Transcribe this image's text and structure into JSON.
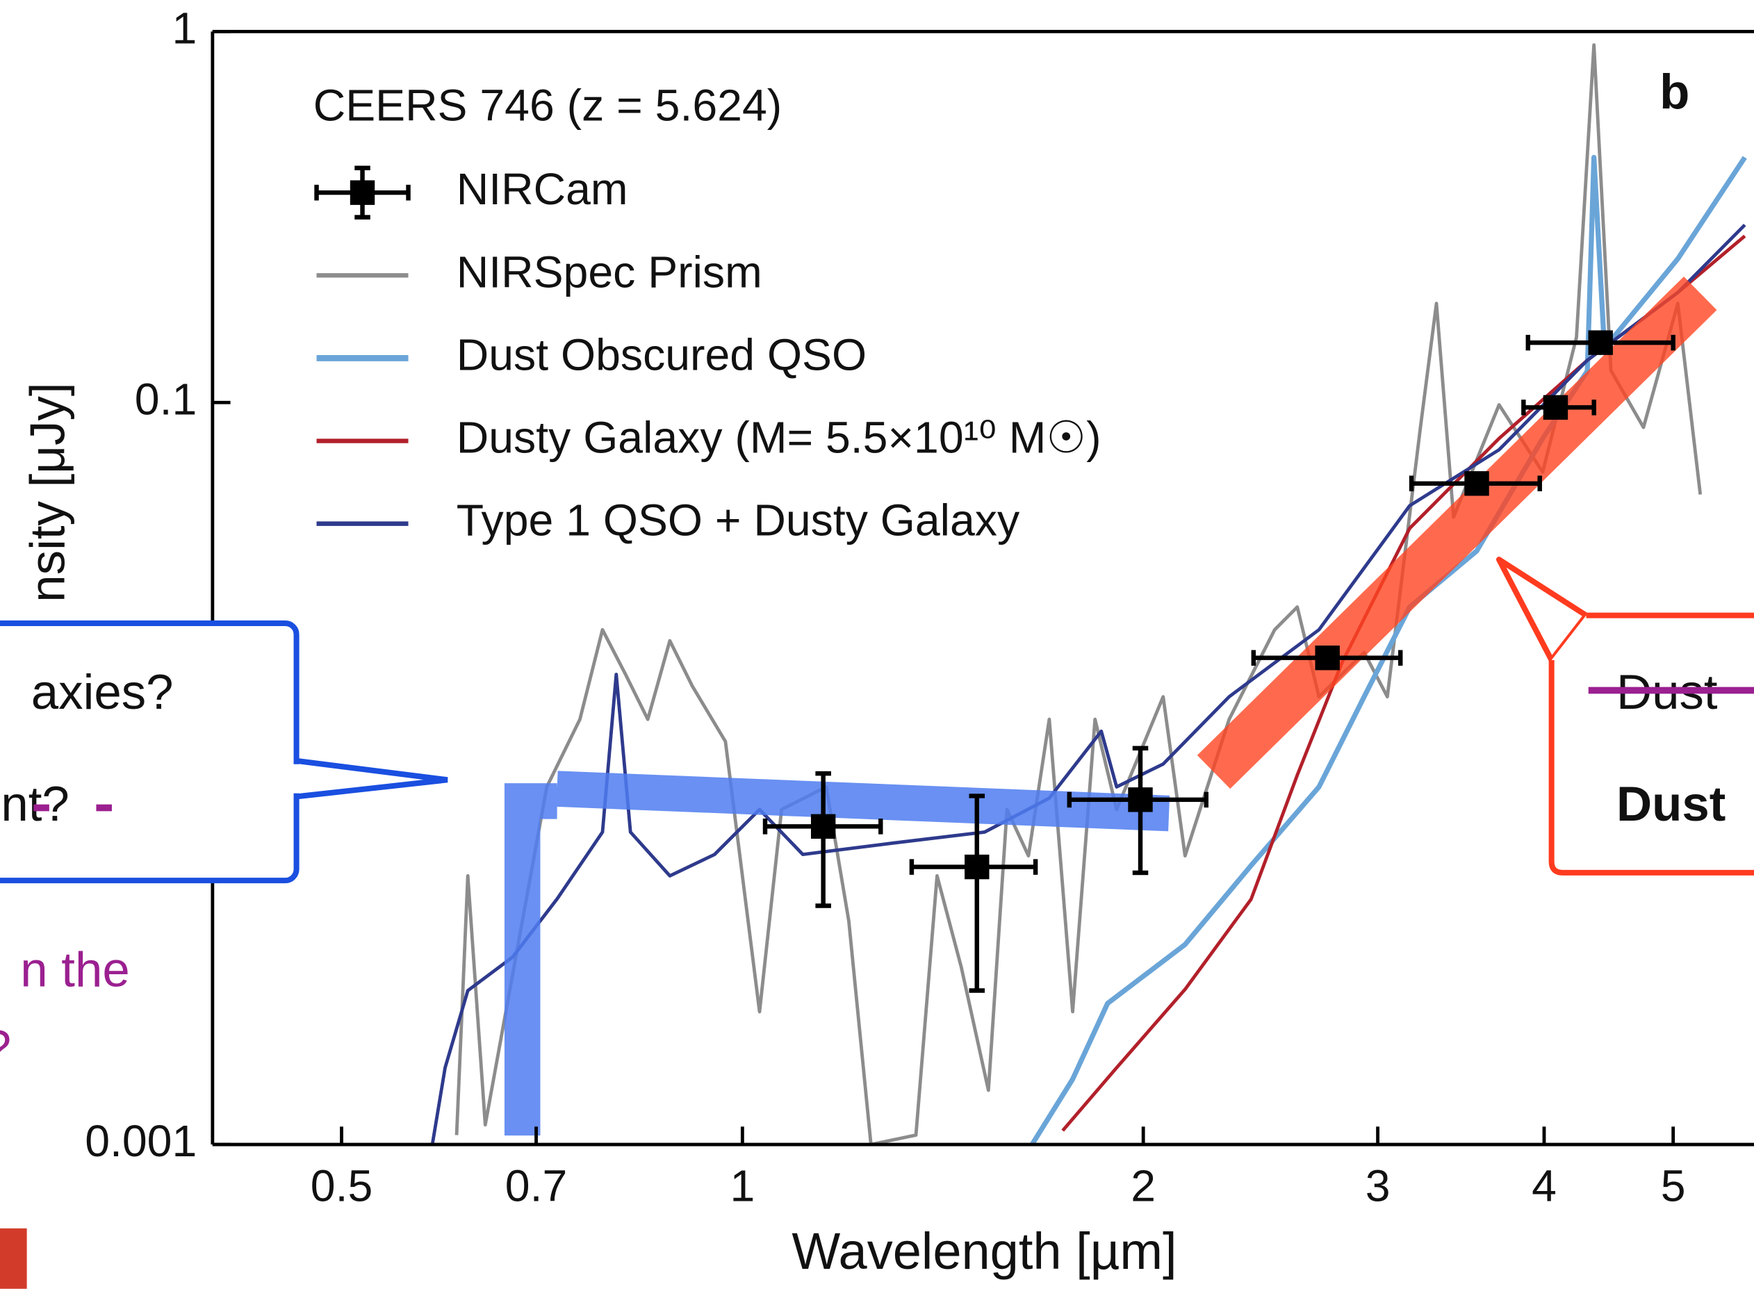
{
  "chart_data": {
    "type": "line",
    "xlabel": "Wavelength [µm]",
    "ylabel": "nsity [μJy]",
    "xscale": "log",
    "yscale": "log",
    "xlim": [
      0.4,
      5.75
    ],
    "ylim": [
      0.001,
      1
    ],
    "xticks": [
      0.5,
      0.7,
      1,
      2,
      3,
      4,
      5
    ],
    "yticks": [
      0.001,
      0.1,
      1
    ],
    "panel_label": "b",
    "legend_title": "CEERS 746 (z = 5.624)",
    "series": [
      {
        "name": "NIRCam",
        "color": "#000000",
        "marker": "square",
        "x": [
          1.15,
          1.5,
          1.99,
          2.75,
          3.56,
          4.08,
          4.41
        ],
        "values": [
          0.0072,
          0.0056,
          0.0085,
          0.0205,
          0.0605,
          0.097,
          0.145
        ],
        "x_low": [
          1.04,
          1.34,
          1.76,
          2.42,
          3.18,
          3.86,
          3.89
        ],
        "x_high": [
          1.27,
          1.66,
          2.23,
          3.12,
          3.97,
          4.36,
          5.0
        ],
        "y_low": [
          0.0044,
          0.0026,
          0.0054,
          null,
          null,
          null,
          null
        ],
        "y_high": [
          0.01,
          0.0087,
          0.0117,
          null,
          null,
          null,
          null
        ]
      },
      {
        "name": "NIRSpec Prism",
        "color": "#8c8c8c",
        "x": [
          0.61,
          0.622,
          0.641,
          0.713,
          0.755,
          0.785,
          0.817,
          0.849,
          0.882,
          0.917,
          0.971,
          1.03,
          1.07,
          1.156,
          1.202,
          1.249,
          1.35,
          1.4,
          1.46,
          1.53,
          1.58,
          1.64,
          1.7,
          1.77,
          1.84,
          1.91,
          2.07,
          2.15,
          2.32,
          2.51,
          2.61,
          2.71,
          2.93,
          3.05,
          3.23,
          3.32,
          3.42,
          3.7,
          3.99,
          4.23,
          4.36,
          4.49,
          4.75,
          5.04,
          5.24
        ],
        "values": [
          0.00106,
          0.0053,
          0.00113,
          0.0092,
          0.014,
          0.0244,
          0.0185,
          0.014,
          0.0228,
          0.0172,
          0.0122,
          0.00228,
          0.008,
          0.0092,
          0.004,
          0.001,
          0.00106,
          0.0053,
          0.00301,
          0.0014,
          0.008,
          0.006,
          0.014,
          0.00228,
          0.014,
          0.008,
          0.0161,
          0.006,
          0.014,
          0.0244,
          0.0281,
          0.0161,
          0.0212,
          0.0161,
          0.0857,
          0.185,
          0.0491,
          0.0986,
          0.0649,
          0.15,
          0.92,
          0.122,
          0.0857,
          0.185,
          0.0565
        ]
      },
      {
        "name": "Dust Obscured QSO",
        "color": "#6aa5d8",
        "x": [
          1.65,
          1.77,
          1.88,
          2.15,
          2.41,
          2.71,
          2.93,
          3.17,
          3.56,
          3.99,
          4.31,
          4.36,
          4.44,
          5.04,
          5.66
        ],
        "values": [
          0.001,
          0.0015,
          0.0024,
          0.00346,
          0.00565,
          0.0092,
          0.0161,
          0.0281,
          0.0398,
          0.08,
          0.1216,
          0.458,
          0.14,
          0.244,
          0.458
        ]
      },
      {
        "name": "Dusty Galaxy (M= 5.5×10¹⁰ M☉)",
        "color": "#b2202a",
        "x": [
          1.74,
          1.91,
          2.15,
          2.41,
          2.61,
          2.82,
          3.17,
          3.7,
          4.31,
          5.04,
          5.66
        ],
        "values": [
          0.00109,
          0.00161,
          0.00262,
          0.00458,
          0.0099,
          0.0199,
          0.0458,
          0.08,
          0.13,
          0.198,
          0.281
        ]
      },
      {
        "name": "Type 1 QSO + Dusty Galaxy",
        "color": "#2e3a8c",
        "x": [
          0.585,
          0.598,
          0.622,
          0.672,
          0.726,
          0.785,
          0.804,
          0.824,
          0.882,
          0.953,
          1.03,
          1.11,
          1.3,
          1.52,
          1.7,
          1.86,
          1.91,
          2.07,
          2.32,
          2.71,
          3.17,
          3.7,
          4.31,
          5.04,
          5.66
        ],
        "values": [
          0.001,
          0.00161,
          0.0026,
          0.0032,
          0.0046,
          0.00695,
          0.0185,
          0.00695,
          0.0053,
          0.00605,
          0.008,
          0.00605,
          0.0065,
          0.00695,
          0.00858,
          0.013,
          0.0092,
          0.0106,
          0.0161,
          0.0244,
          0.0527,
          0.0746,
          0.13,
          0.198,
          0.301
        ]
      }
    ]
  },
  "annotations": {
    "left_box": [
      "axies?",
      "nt?"
    ],
    "left_note": [
      "n the",
      "?"
    ],
    "right_box": [
      "Dust",
      "Dust"
    ]
  }
}
